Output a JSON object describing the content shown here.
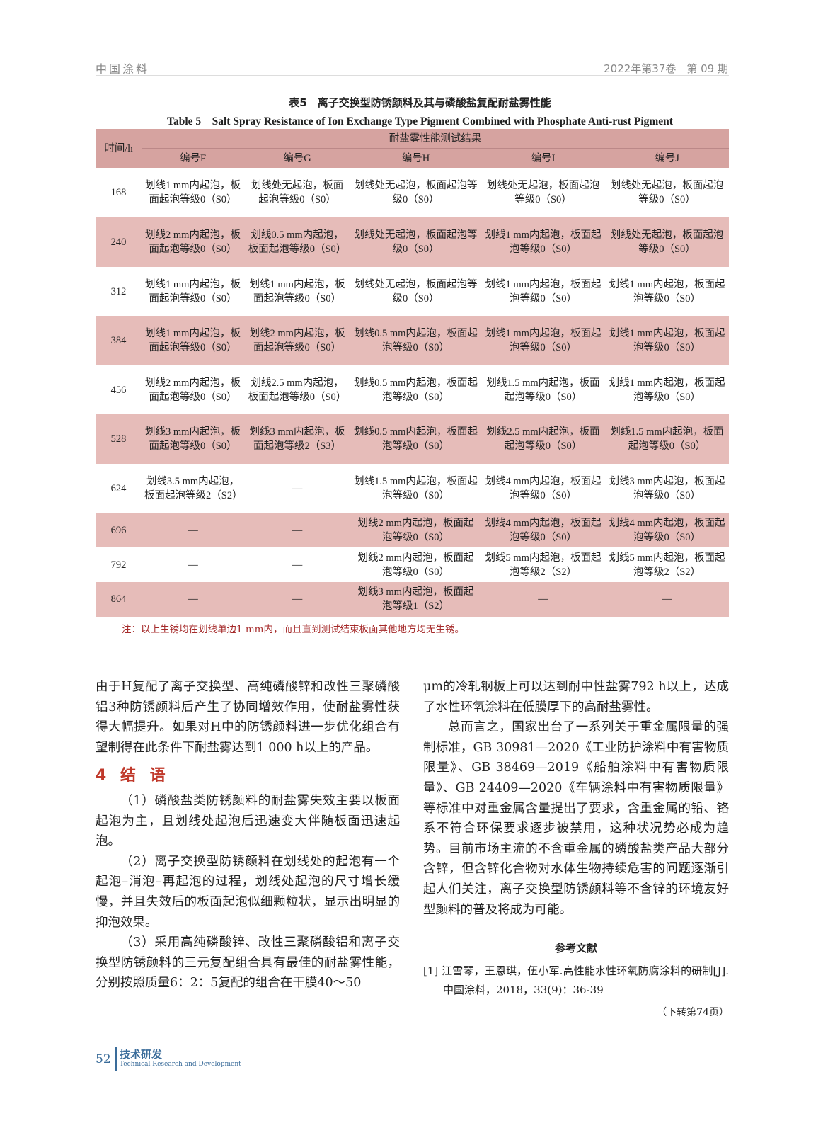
{
  "header": {
    "journal": "中国涂料",
    "issue": "2022年第37卷　第 09 期"
  },
  "table": {
    "caption_cn": "表5　离子交换型防锈颜料及其与磷酸盐复配耐盐雾性能",
    "caption_en": "Table 5　Salt Spray Resistance of Ion Exchange Type Pigment Combined with Phosphate Anti-rust Pigment",
    "time_header": "时间/h",
    "group_header": "耐盐雾性能测试结果",
    "columns": [
      "编号F",
      "编号G",
      "编号H",
      "编号I",
      "编号J"
    ],
    "rows": [
      {
        "time": "168",
        "cells": [
          "划线1 mm内起泡，板面起泡等级0（S0）",
          "划线处无起泡，板面起泡等级0（S0）",
          "划线处无起泡，板面起泡等级0（S0）",
          "划线处无起泡，板面起泡等级0（S0）",
          "划线处无起泡，板面起泡等级0（S0）"
        ]
      },
      {
        "time": "240",
        "cells": [
          "划线2 mm内起泡，板面起泡等级0（S0）",
          "划线0.5 mm内起泡，板面起泡等级0（S0）",
          "划线处无起泡，板面起泡等级0（S0）",
          "划线1 mm内起泡，板面起泡等级0（S0）",
          "划线处无起泡，板面起泡等级0（S0）"
        ]
      },
      {
        "time": "312",
        "cells": [
          "划线1 mm内起泡，板面起泡等级0（S0）",
          "划线1 mm内起泡，板面起泡等级0（S0）",
          "划线处无起泡，板面起泡等级0（S0）",
          "划线1 mm内起泡，板面起泡等级0（S0）",
          "划线1 mm内起泡，板面起泡等级0（S0）"
        ]
      },
      {
        "time": "384",
        "cells": [
          "划线1 mm内起泡，板面起泡等级0（S0）",
          "划线2 mm内起泡，板面起泡等级0（S0）",
          "划线0.5 mm内起泡，板面起泡等级0（S0）",
          "划线1 mm内起泡，板面起泡等级0（S0）",
          "划线1 mm内起泡，板面起泡等级0（S0）"
        ]
      },
      {
        "time": "456",
        "cells": [
          "划线2 mm内起泡，板面起泡等级0（S0）",
          "划线2.5 mm内起泡，板面起泡等级0（S0）",
          "划线0.5 mm内起泡，板面起泡等级0（S0）",
          "划线1.5 mm内起泡，板面起泡等级0（S0）",
          "划线1 mm内起泡，板面起泡等级0（S0）"
        ]
      },
      {
        "time": "528",
        "cells": [
          "划线3 mm内起泡，板面起泡等级0（S0）",
          "划线3 mm内起泡，板面起泡等级2（S3）",
          "划线0.5 mm内起泡，板面起泡等级0（S0）",
          "划线2.5 mm内起泡，板面起泡等级0（S0）",
          "划线1.5 mm内起泡，板面起泡等级0（S0）"
        ]
      },
      {
        "time": "624",
        "cells": [
          "划线3.5 mm内起泡，板面起泡等级2（S2）",
          "—",
          "划线1.5 mm内起泡，板面起泡等级0（S0）",
          "划线4 mm内起泡，板面起泡等级0（S0）",
          "划线3 mm内起泡，板面起泡等级0（S0）"
        ]
      },
      {
        "time": "696",
        "cells": [
          "—",
          "—",
          "划线2 mm内起泡，板面起泡等级0（S0）",
          "划线4 mm内起泡，板面起泡等级0（S0）",
          "划线4 mm内起泡，板面起泡等级0（S0）"
        ]
      },
      {
        "time": "792",
        "cells": [
          "—",
          "—",
          "划线2 mm内起泡，板面起泡等级0（S0）",
          "划线5 mm内起泡，板面起泡等级2（S2）",
          "划线5 mm内起泡，板面起泡等级2（S2）"
        ]
      },
      {
        "time": "864",
        "cells": [
          "—",
          "—",
          "划线3 mm内起泡，板面起泡等级1（S2）",
          "—",
          "—"
        ]
      }
    ],
    "note": "注：以上生锈均在划线单边1 mm内，而且直到测试结束板面其他地方均无生锈。"
  },
  "left_col": {
    "p1": "由于H复配了离子交换型、高纯磷酸锌和改性三聚磷酸铝3种防锈颜料后产生了协同增效作用，使耐盐雾性获得大幅提升。如果对H中的防锈颜料进一步优化组合有望制得在此条件下耐盐雾达到1 000 h以上的产品。",
    "heading": "4 结 语",
    "c1": "（1）磷酸盐类防锈颜料的耐盐雾失效主要以板面起泡为主，且划线处起泡后迅速变大伴随板面迅速起泡。",
    "c2": "（2）离子交换型防锈颜料在划线处的起泡有一个起泡–消泡–再起泡的过程，划线处起泡的尺寸增长缓慢，并且失效后的板面起泡似细颗粒状，显示出明显的抑泡效果。",
    "c3": "（3）采用高纯磷酸锌、改性三聚磷酸铝和离子交换型防锈颜料的三元复配组合具有最佳的耐盐雾性能，分别按照质量6：2：5复配的组合在干膜40～50"
  },
  "right_col": {
    "p1": "μm的冷轧钢板上可以达到耐中性盐雾792 h以上，达成了水性环氧涂料在低膜厚下的高耐盐雾性。",
    "p2": "总而言之，国家出台了一系列关于重金属限量的强制标准，GB 30981—2020《工业防护涂料中有害物质限量》、GB 38469—2019《船舶涂料中有害物质限量》、GB 24409—2020《车辆涂料中有害物质限量》等标准中对重金属含量提出了要求，含重金属的铅、铬系不符合环保要求逐步被禁用，这种状况势必成为趋势。目前市场主流的不含重金属的磷酸盐类产品大部分含锌，但含锌化合物对水体生物持续危害的问题逐渐引起人们关注，离子交换型防锈颜料等不含锌的环境友好型颜料的普及将成为可能。",
    "refs_heading": "参考文献",
    "ref1": "[1] 江雪琴，王恩琪，伍小军.高性能水性环氧防腐涂料的研制[J].中国涂料，2018，33(9)：36-39",
    "continued": "（下转第74页）"
  },
  "footer": {
    "page": "52",
    "section": "技术研发",
    "section_en": "Technical Research and Development"
  }
}
